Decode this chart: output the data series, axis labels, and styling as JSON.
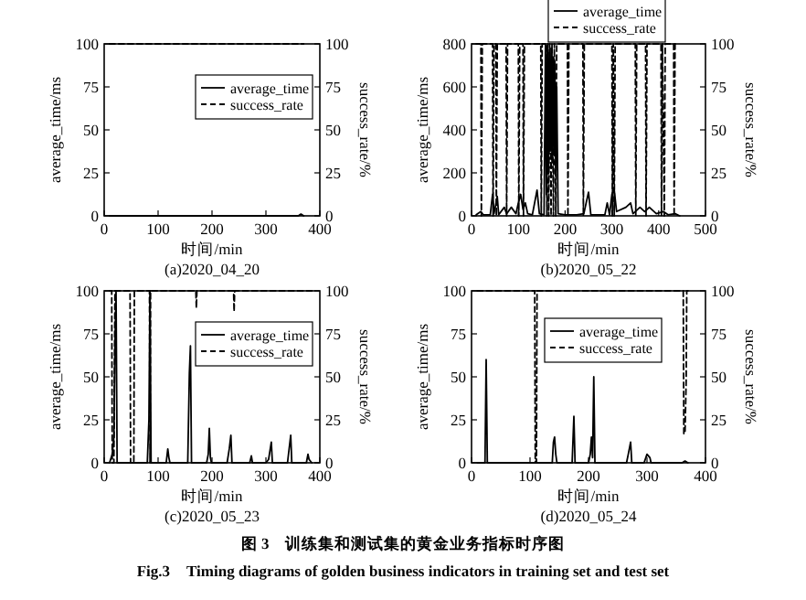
{
  "chart_data": [
    {
      "type": "line",
      "title": "(a)2020_04_20",
      "xlabel": "时间/min",
      "ylabel": "average_time/ms",
      "y2label": "success_rate/%",
      "xlim": [
        0,
        400
      ],
      "xticks": [
        0,
        100,
        200,
        300,
        400
      ],
      "ylim": [
        0,
        100
      ],
      "yticks": [
        0,
        25,
        50,
        75,
        100
      ],
      "y2lim": [
        0,
        100
      ],
      "y2ticks": [
        0,
        25,
        50,
        75,
        100
      ],
      "legend": "top right",
      "grid": false,
      "series": [
        {
          "name": "average_time",
          "color": "#000000",
          "line_style": "solid",
          "x": [
            10,
            360,
            365,
            370
          ],
          "values": [
            0,
            0,
            1,
            0
          ]
        },
        {
          "name": "success_rate",
          "color": "#000000",
          "line_style": "dashed",
          "axis": "y2",
          "x": [
            10,
            370
          ],
          "values": [
            100,
            100
          ]
        }
      ]
    },
    {
      "type": "line",
      "title": "(b)2020_05_22",
      "xlabel": "时间/min",
      "ylabel": "average_time/ms",
      "y2label": "success_rate/%",
      "xlim": [
        0,
        500
      ],
      "xticks": [
        0,
        100,
        200,
        300,
        400,
        500
      ],
      "ylim": [
        0,
        800
      ],
      "yticks": [
        0,
        200,
        400,
        600,
        800
      ],
      "y2lim": [
        0,
        100
      ],
      "y2ticks": [
        0,
        25,
        50,
        75,
        100
      ],
      "legend": "top",
      "grid": false,
      "series": [
        {
          "name": "average_time",
          "color": "#000000",
          "line_style": "solid",
          "x": [
            10,
            20,
            25,
            40,
            45,
            48,
            55,
            58,
            70,
            75,
            85,
            95,
            100,
            105,
            110,
            115,
            120,
            130,
            140,
            145,
            155,
            158,
            160,
            162,
            164,
            166,
            168,
            170,
            172,
            174,
            176,
            178,
            180,
            182,
            185,
            200,
            225,
            240,
            250,
            255,
            285,
            290,
            295,
            300,
            305,
            310,
            330,
            340,
            345,
            350,
            360,
            370,
            380,
            395,
            410,
            420,
            435,
            445
          ],
          "values": [
            5,
            20,
            5,
            5,
            100,
            10,
            90,
            5,
            40,
            10,
            40,
            10,
            60,
            100,
            30,
            60,
            10,
            5,
            120,
            10,
            5,
            800,
            100,
            780,
            200,
            760,
            300,
            780,
            250,
            740,
            300,
            720,
            200,
            600,
            10,
            5,
            5,
            10,
            110,
            5,
            5,
            60,
            5,
            100,
            120,
            20,
            40,
            60,
            10,
            20,
            40,
            20,
            40,
            10,
            20,
            5,
            10,
            0
          ]
        },
        {
          "name": "success_rate",
          "color": "#000000",
          "line_style": "dashed",
          "axis": "y2",
          "x": [
            10,
            20,
            21,
            23,
            45,
            46,
            48,
            52,
            53,
            55,
            74,
            75,
            77,
            100,
            101,
            103,
            110,
            111,
            113,
            148,
            149,
            151,
            160,
            161,
            163,
            165,
            167,
            170,
            172,
            175,
            177,
            180,
            182,
            205,
            206,
            208,
            238,
            239,
            241,
            300,
            301,
            303,
            305,
            307,
            350,
            351,
            353,
            372,
            373,
            375,
            405,
            406,
            408,
            412,
            414,
            432,
            433,
            435,
            440
          ],
          "values": [
            100,
            100,
            0,
            100,
            100,
            0,
            100,
            100,
            0,
            100,
            100,
            0,
            100,
            100,
            0,
            100,
            100,
            0,
            100,
            100,
            0,
            100,
            100,
            0,
            100,
            0,
            100,
            0,
            100,
            0,
            100,
            0,
            100,
            100,
            0,
            100,
            100,
            0,
            100,
            100,
            0,
            100,
            0,
            100,
            100,
            0,
            100,
            100,
            0,
            100,
            100,
            0,
            100,
            0,
            100,
            100,
            0,
            100,
            100
          ]
        }
      ]
    },
    {
      "type": "line",
      "title": "(c)2020_05_23",
      "xlabel": "时间/min",
      "ylabel": "average_time/ms",
      "y2label": "success_rate/%",
      "xlim": [
        0,
        400
      ],
      "xticks": [
        0,
        100,
        200,
        300,
        400
      ],
      "ylim": [
        0,
        100
      ],
      "yticks": [
        0,
        25,
        50,
        75,
        100
      ],
      "y2lim": [
        0,
        100
      ],
      "y2ticks": [
        0,
        25,
        50,
        75,
        100
      ],
      "legend": "top right",
      "grid": false,
      "series": [
        {
          "name": "average_time",
          "color": "#000000",
          "line_style": "solid",
          "x": [
            10,
            15,
            18,
            20,
            22,
            24,
            48,
            50,
            80,
            83,
            85,
            87,
            115,
            118,
            120,
            122,
            155,
            158,
            160,
            162,
            190,
            193,
            195,
            197,
            199,
            228,
            232,
            235,
            237,
            270,
            273,
            275,
            300,
            305,
            310,
            312,
            340,
            343,
            346,
            348,
            375,
            378,
            380,
            385
          ],
          "values": [
            0,
            5,
            15,
            68,
            100,
            0,
            0,
            0,
            0,
            25,
            100,
            0,
            0,
            8,
            3,
            0,
            0,
            52,
            68,
            0,
            0,
            5,
            20,
            3,
            0,
            0,
            8,
            16,
            0,
            0,
            4,
            0,
            0,
            2,
            12,
            0,
            0,
            8,
            16,
            0,
            0,
            5,
            2,
            0
          ]
        },
        {
          "name": "success_rate",
          "color": "#000000",
          "line_style": "dashed",
          "axis": "y2",
          "x": [
            10,
            14,
            15,
            18,
            20,
            48,
            49,
            55,
            56,
            84,
            85,
            86,
            170,
            171,
            172,
            240,
            241,
            242,
            385
          ],
          "values": [
            100,
            100,
            0,
            0,
            100,
            100,
            0,
            0,
            100,
            100,
            0,
            100,
            100,
            90,
            100,
            100,
            88,
            100,
            100
          ]
        }
      ]
    },
    {
      "type": "line",
      "title": "(d)2020_05_24",
      "xlabel": "时间/min",
      "ylabel": "average_time/ms",
      "y2label": "success_rate/%",
      "xlim": [
        0,
        400
      ],
      "xticks": [
        0,
        100,
        200,
        300,
        400
      ],
      "ylim": [
        0,
        100
      ],
      "yticks": [
        0,
        25,
        50,
        75,
        100
      ],
      "y2lim": [
        0,
        100
      ],
      "y2ticks": [
        0,
        25,
        50,
        75,
        100
      ],
      "legend": "top",
      "grid": false,
      "annotations": [
        "图 3　训练集和测试集的黄金业务指标时序图",
        "Fig.3　Timing diagrams of golden business indicators in training set and test set"
      ],
      "series": [
        {
          "name": "average_time",
          "color": "#000000",
          "line_style": "solid",
          "x": [
            10,
            23,
            25,
            27,
            108,
            110,
            112,
            138,
            140,
            142,
            144,
            146,
            172,
            175,
            177,
            200,
            203,
            205,
            207,
            209,
            211,
            265,
            268,
            272,
            274,
            295,
            300,
            305,
            307,
            360,
            365,
            370
          ],
          "values": [
            0,
            0,
            60,
            0,
            0,
            1,
            0,
            0,
            12,
            15,
            5,
            0,
            0,
            27,
            0,
            0,
            5,
            15,
            3,
            50,
            0,
            0,
            5,
            12,
            0,
            0,
            5,
            3,
            0,
            0,
            1,
            0
          ]
        },
        {
          "name": "success_rate",
          "color": "#000000",
          "line_style": "dashed",
          "axis": "y2",
          "x": [
            10,
            108,
            109,
            111,
            112,
            362,
            363,
            365,
            367,
            368,
            370
          ],
          "values": [
            100,
            100,
            0,
            0,
            100,
            100,
            17,
            17,
            48,
            100,
            100
          ]
        }
      ]
    }
  ]
}
